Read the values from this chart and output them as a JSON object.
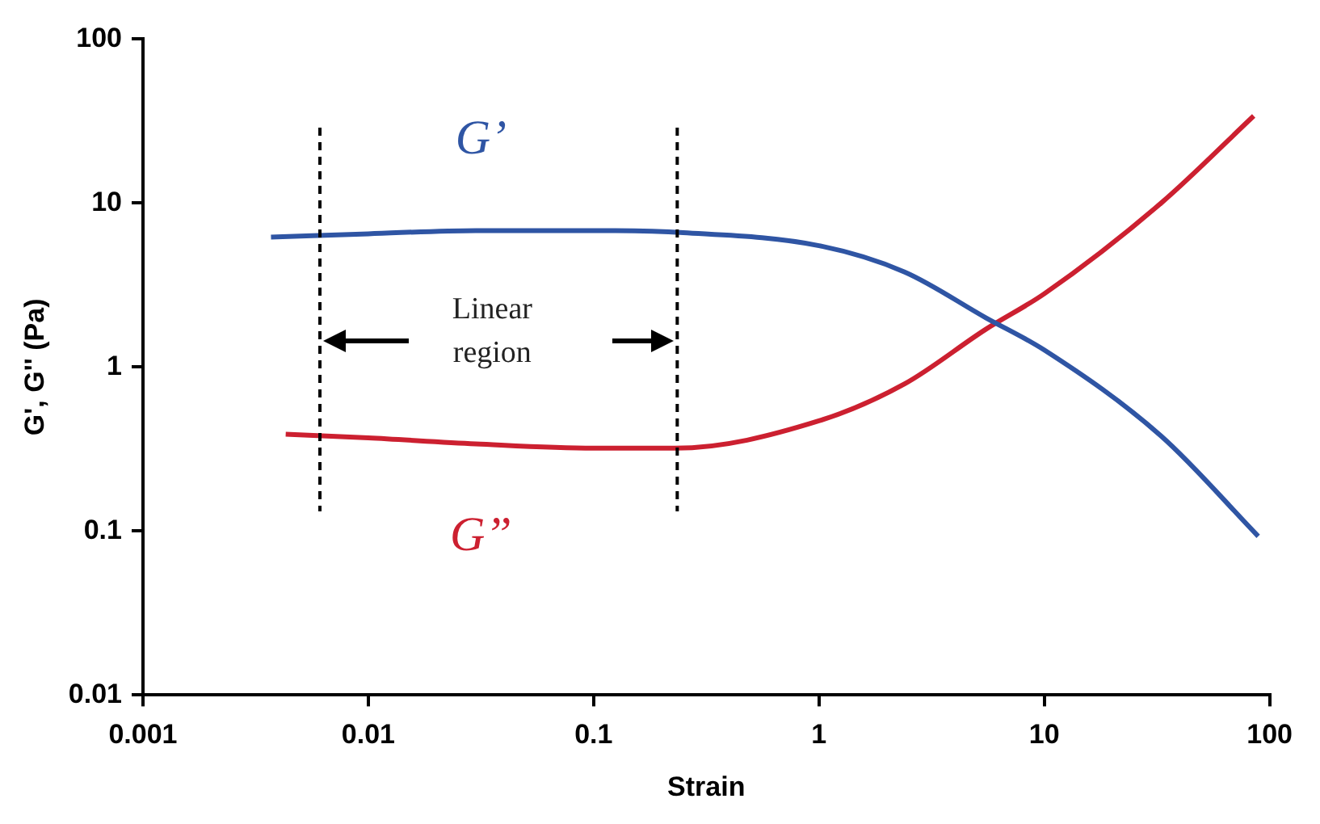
{
  "chart_data": {
    "type": "line",
    "xlabel": "Strain",
    "ylabel": "G', G'' (Pa)",
    "log": "xy",
    "grid": false,
    "legend": false,
    "marker": "none",
    "line_style": "solid",
    "xlim": [
      0.001,
      100
    ],
    "xticks": [
      0.001,
      0.01,
      0.1,
      1,
      10,
      100
    ],
    "ylim": [
      0.01,
      100
    ],
    "yticks": [
      0.01,
      0.1,
      1,
      10,
      100
    ],
    "series": [
      {
        "name": "G’",
        "color": "#2f55a4",
        "x": [
          0.0037,
          0.01,
          0.03,
          0.1,
          0.25,
          1,
          2.4,
          5.5,
          10,
          33,
          89
        ],
        "values": [
          6.2,
          6.5,
          6.8,
          6.8,
          6.6,
          5.5,
          3.8,
          2.0,
          1.27,
          0.38,
          0.093
        ]
      },
      {
        "name": "G”",
        "color": "#cc2030",
        "x": [
          0.0043,
          0.01,
          0.03,
          0.1,
          0.23,
          1,
          2.4,
          5.5,
          10,
          33,
          85
        ],
        "values": [
          0.39,
          0.37,
          0.34,
          0.32,
          0.32,
          0.47,
          0.79,
          1.7,
          2.8,
          10,
          34
        ]
      }
    ],
    "ref_lines": [
      {
        "axis": "x",
        "value": 0.0061,
        "color": "#000000",
        "line_style": "dashed"
      },
      {
        "axis": "x",
        "value": 0.235,
        "color": "#000000",
        "line_style": "dashed"
      }
    ],
    "annotations": [
      "Linear region"
    ]
  }
}
